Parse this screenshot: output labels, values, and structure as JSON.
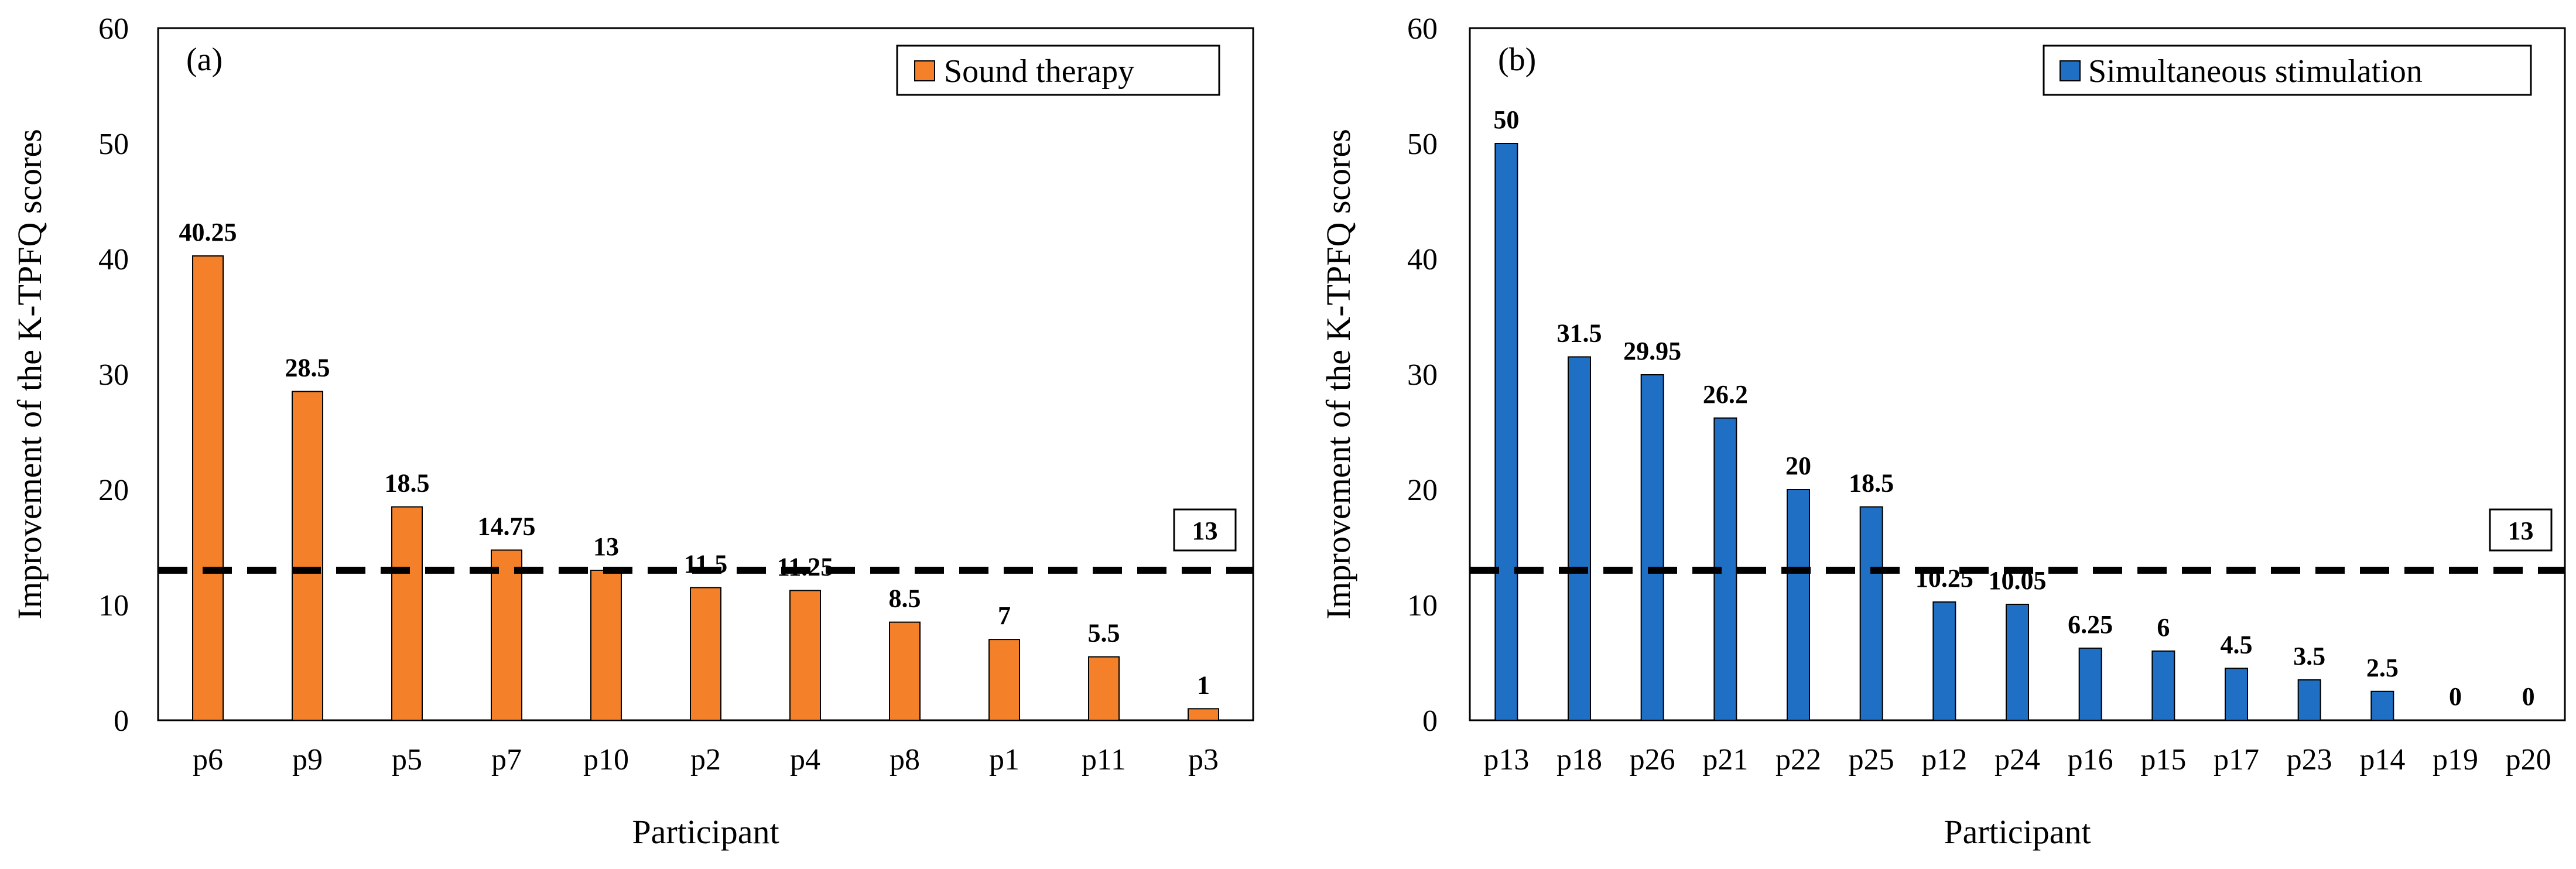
{
  "chart_data": [
    {
      "type": "bar",
      "panel_label": "(a)",
      "legend": "Sound therapy",
      "color": "#F5802A",
      "categories": [
        "p6",
        "p9",
        "p5",
        "p7",
        "p10",
        "p2",
        "p4",
        "p8",
        "p1",
        "p11",
        "p3"
      ],
      "values": [
        40.25,
        28.5,
        18.5,
        14.75,
        13,
        11.5,
        11.25,
        8.5,
        7,
        5.5,
        1
      ],
      "value_labels": [
        "40.25",
        "28.5",
        "18.5",
        "14.75",
        "13",
        "11.5",
        "11.25",
        "8.5",
        "7",
        "5.5",
        "1"
      ],
      "xlabel": "Participant",
      "ylabel": "Improvement of the K-TPFQ scores",
      "ylim": [
        0,
        60
      ],
      "yticks": [
        "0",
        "10",
        "20",
        "30",
        "40",
        "50",
        "60"
      ],
      "threshold": 13,
      "threshold_label": "13"
    },
    {
      "type": "bar",
      "panel_label": "(b)",
      "legend": "Simultaneous stimulation",
      "color": "#1F6FC4",
      "categories": [
        "p13",
        "p18",
        "p26",
        "p21",
        "p22",
        "p25",
        "p12",
        "p24",
        "p16",
        "p15",
        "p17",
        "p23",
        "p14",
        "p19",
        "p20"
      ],
      "values": [
        50,
        31.5,
        29.95,
        26.2,
        20,
        18.5,
        10.25,
        10.05,
        6.25,
        6,
        4.5,
        3.5,
        2.5,
        0,
        0
      ],
      "value_labels": [
        "50",
        "31.5",
        "29.95",
        "26.2",
        "20",
        "18.5",
        "10.25",
        "10.05",
        "6.25",
        "6",
        "4.5",
        "3.5",
        "2.5",
        "0",
        "0"
      ],
      "xlabel": "Participant",
      "ylabel": "Improvement of the K-TPFQ scores",
      "ylim": [
        0,
        60
      ],
      "yticks": [
        "0",
        "10",
        "20",
        "30",
        "40",
        "50",
        "60"
      ],
      "threshold": 13,
      "threshold_label": "13"
    }
  ]
}
